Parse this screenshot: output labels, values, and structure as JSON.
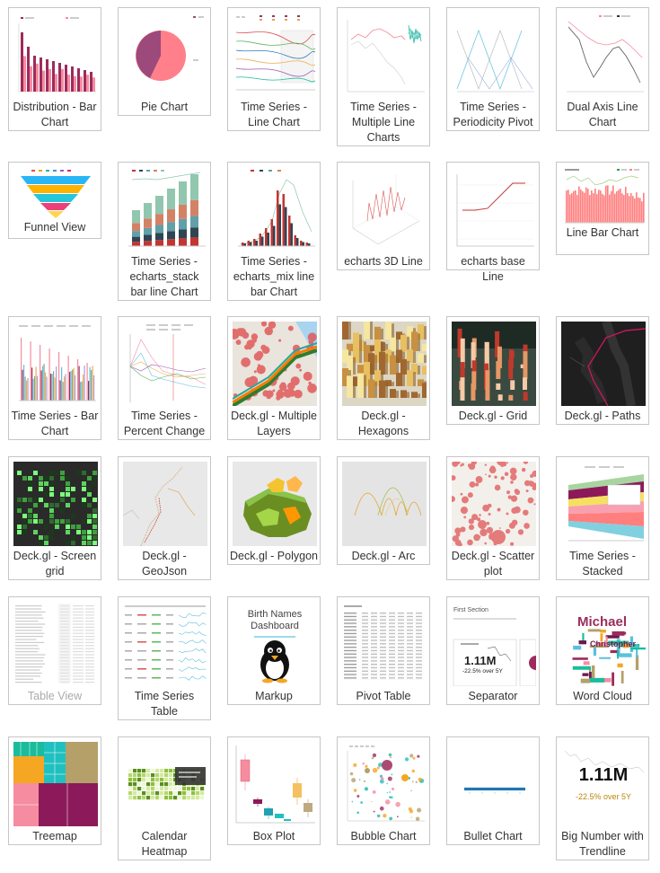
{
  "gallery": [
    [
      {
        "label": "Distribution - Bar Chart",
        "icon": "bar-chart-thumbnail"
      },
      {
        "label": "Pie Chart",
        "icon": "pie-chart-thumbnail"
      },
      {
        "label": "Time Series - Line Chart",
        "icon": "line-chart-thumbnail"
      },
      {
        "label": "Time Series - Multiple Line Charts",
        "icon": "multi-line-chart-thumbnail"
      },
      {
        "label": "Time Series - Periodicity Pivot",
        "icon": "periodicity-pivot-thumbnail"
      },
      {
        "label": "Dual Axis Line Chart",
        "icon": "dual-axis-line-thumbnail"
      }
    ],
    [
      {
        "label": "Funnel View",
        "icon": "funnel-thumbnail"
      },
      {
        "label": "Time Series - echarts_stack bar line Chart",
        "icon": "stack-bar-line-thumbnail"
      },
      {
        "label": "Time Series - echarts_mix line bar Chart",
        "icon": "mix-line-bar-thumbnail"
      },
      {
        "label": "echarts 3D Line",
        "icon": "3d-line-thumbnail"
      },
      {
        "label": "echarts base Line",
        "icon": "base-line-thumbnail"
      },
      {
        "label": "Line Bar Chart",
        "icon": "line-bar-thumbnail"
      }
    ],
    [
      {
        "label": "Time Series - Bar Chart",
        "icon": "ts-bar-thumbnail"
      },
      {
        "label": "Time Series - Percent Change",
        "icon": "percent-change-thumbnail"
      },
      {
        "label": "Deck.gl - Multiple Layers",
        "icon": "deckgl-layers-thumbnail"
      },
      {
        "label": "Deck.gl - Hexagons",
        "icon": "deckgl-hexagons-thumbnail"
      },
      {
        "label": "Deck.gl - Grid",
        "icon": "deckgl-grid-thumbnail"
      },
      {
        "label": "Deck.gl - Paths",
        "icon": "deckgl-paths-thumbnail"
      }
    ],
    [
      {
        "label": "Deck.gl - Screen grid",
        "icon": "deckgl-screengrid-thumbnail"
      },
      {
        "label": "Deck.gl - GeoJson",
        "icon": "deckgl-geojson-thumbnail"
      },
      {
        "label": "Deck.gl - Polygon",
        "icon": "deckgl-polygon-thumbnail"
      },
      {
        "label": "Deck.gl - Arc",
        "icon": "deckgl-arc-thumbnail"
      },
      {
        "label": "Deck.gl - Scatter plot",
        "icon": "deckgl-scatter-thumbnail"
      },
      {
        "label": "Time Series - Stacked",
        "icon": "stacked-area-thumbnail"
      }
    ],
    [
      {
        "label": "Table View",
        "icon": "table-thumbnail",
        "disabled": true
      },
      {
        "label": "Time Series Table",
        "icon": "ts-table-thumbnail"
      },
      {
        "label": "Markup",
        "icon": "markup-thumbnail"
      },
      {
        "label": "Pivot Table",
        "icon": "pivot-table-thumbnail"
      },
      {
        "label": "Separator",
        "icon": "separator-thumbnail"
      },
      {
        "label": "Word Cloud",
        "icon": "word-cloud-thumbnail"
      }
    ],
    [
      {
        "label": "Treemap",
        "icon": "treemap-thumbnail"
      },
      {
        "label": "Calendar Heatmap",
        "icon": "calendar-heatmap-thumbnail"
      },
      {
        "label": "Box Plot",
        "icon": "box-plot-thumbnail"
      },
      {
        "label": "Bubble Chart",
        "icon": "bubble-chart-thumbnail"
      },
      {
        "label": "Bullet Chart",
        "icon": "bullet-chart-thumbnail"
      },
      {
        "label": "Big Number with Trendline",
        "icon": "big-number-thumbnail"
      }
    ]
  ],
  "thumb_text": {
    "markup_title": "Birth Names Dashboard",
    "separator_title": "First Section",
    "separator_number": "1.11M",
    "separator_delta": "-22.5% over 5Y",
    "big_number": "1.11M",
    "big_number_delta": "-22.5% over 5Y",
    "word_cloud": [
      "Michael",
      "Christopher"
    ]
  },
  "colors": {
    "border": "#c6c6c6",
    "label": "#333333",
    "label_disabled": "#aaaaaa",
    "maroon": "#9c2c5c",
    "pink": "#f58ca0",
    "salmon": "#ff7f7f",
    "map_dark": "#1f1f1f",
    "delta_gold": "#b8860b"
  }
}
